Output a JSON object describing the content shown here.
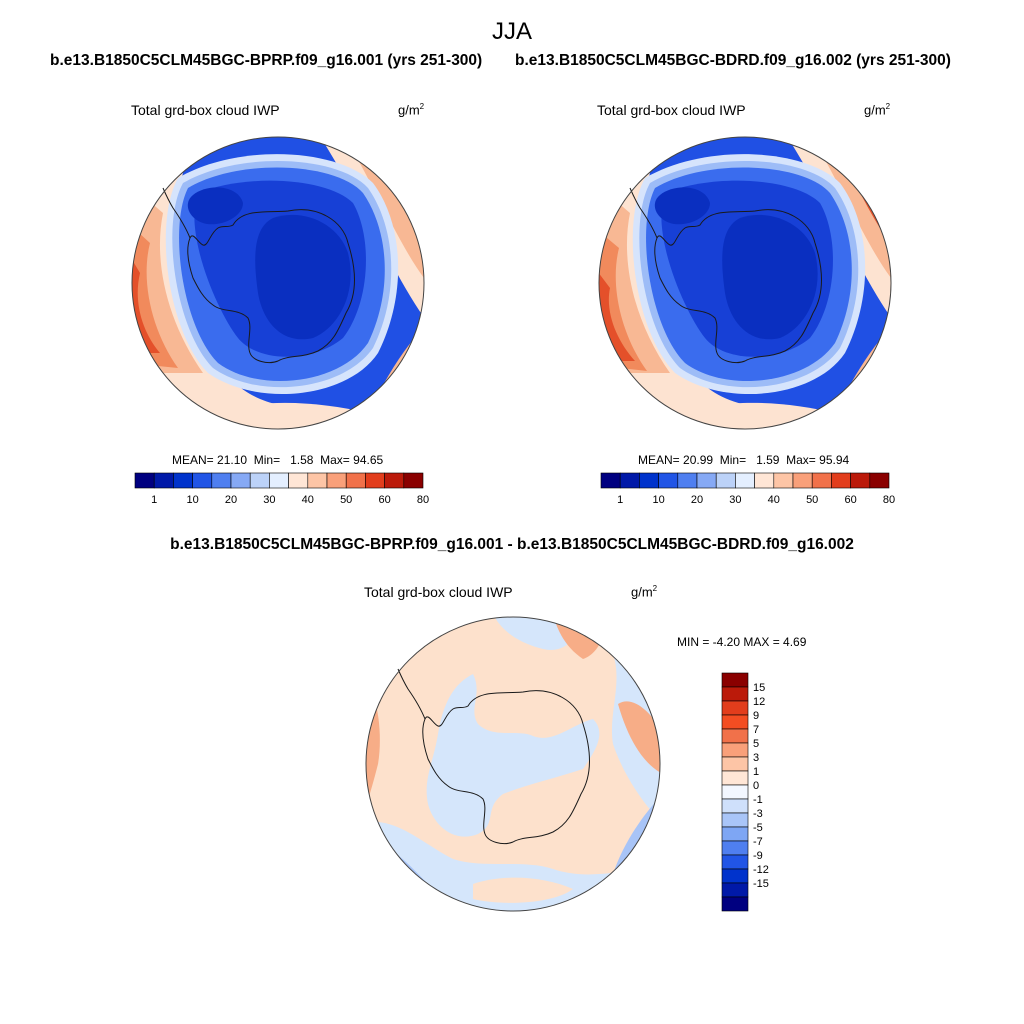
{
  "season": "JJA",
  "panels": [
    {
      "case_title": "b.e13.B1850C5CLM45BGC-BPRP.f09_g16.001 (yrs 251-300)",
      "variable": "Total grd-box cloud IWP",
      "units_base": "g/m",
      "units_exp": "2",
      "stats": {
        "mean_label": "MEAN=",
        "mean": "21.10",
        "min_label": "Min=",
        "min": "1.58",
        "max_label": "Max=",
        "max": "94.65"
      }
    },
    {
      "case_title": "b.e13.B1850C5CLM45BGC-BDRD.f09_g16.002 (yrs 251-300)",
      "variable": "Total grd-box cloud IWP",
      "units_base": "g/m",
      "units_exp": "2",
      "stats": {
        "mean_label": "MEAN=",
        "mean": "20.99",
        "min_label": "Min=",
        "min": "1.59",
        "max_label": "Max=",
        "max": "95.94"
      }
    }
  ],
  "diff": {
    "title": "b.e13.B1850C5CLM45BGC-BPRP.f09_g16.001 - b.e13.B1850C5CLM45BGC-BDRD.f09_g16.002",
    "variable": "Total grd-box cloud IWP",
    "units_base": "g/m",
    "units_exp": "2",
    "minmax": "MIN =  -4.20 MAX =   4.69"
  },
  "abs_colorbar": {
    "colors": [
      "#000080",
      "#0019a8",
      "#0033cc",
      "#2155e6",
      "#4f7ff0",
      "#86a9f5",
      "#bcd2f8",
      "#e4efff",
      "#ffe6d6",
      "#fdc5a6",
      "#f9a07a",
      "#f1714a",
      "#e23d1c",
      "#bb1a0a",
      "#8a0000"
    ],
    "labels": [
      "1",
      "10",
      "20",
      "30",
      "40",
      "50",
      "60",
      "80"
    ],
    "label_slots": [
      1,
      3,
      5,
      7,
      9,
      11,
      13,
      15
    ]
  },
  "diff_colorbar": {
    "colors": [
      "#8a0000",
      "#bb1a0a",
      "#e23d1c",
      "#f34d22",
      "#f1714a",
      "#f9a07a",
      "#fdc5a6",
      "#ffe6d6",
      "#f3f7ff",
      "#cfe0fb",
      "#a9c5f8",
      "#7ea6f4",
      "#4f7ff0",
      "#2155e6",
      "#0033cc",
      "#0019a8",
      "#000080"
    ],
    "labels": [
      "15",
      "12",
      "9",
      "7",
      "5",
      "3",
      "1",
      "0",
      "-1",
      "-3",
      "-5",
      "-7",
      "-9",
      "-12",
      "-15"
    ]
  },
  "colors": {
    "coast": "#1a1a1a",
    "ocean_deep": "#2050e4",
    "ocean_mid": "#3a6cee",
    "inner_dark": "#0a2fc0",
    "inner_mid": "#1740d6",
    "ring_light": "#9dbcf7",
    "ring_pale": "#d6e4fc",
    "warm_pale": "#fde3d1",
    "warm_light": "#f8b894",
    "warm_mid": "#f18a5c",
    "warm_deep": "#e4502a",
    "warm_dark": "#b91a0a",
    "warm_darkest": "#800000",
    "diff_pos": "#fde1cc",
    "diff_pos_mid": "#f7ad87",
    "diff_neg": "#d5e6fb",
    "diff_neg_mid": "#a8c4f7"
  }
}
